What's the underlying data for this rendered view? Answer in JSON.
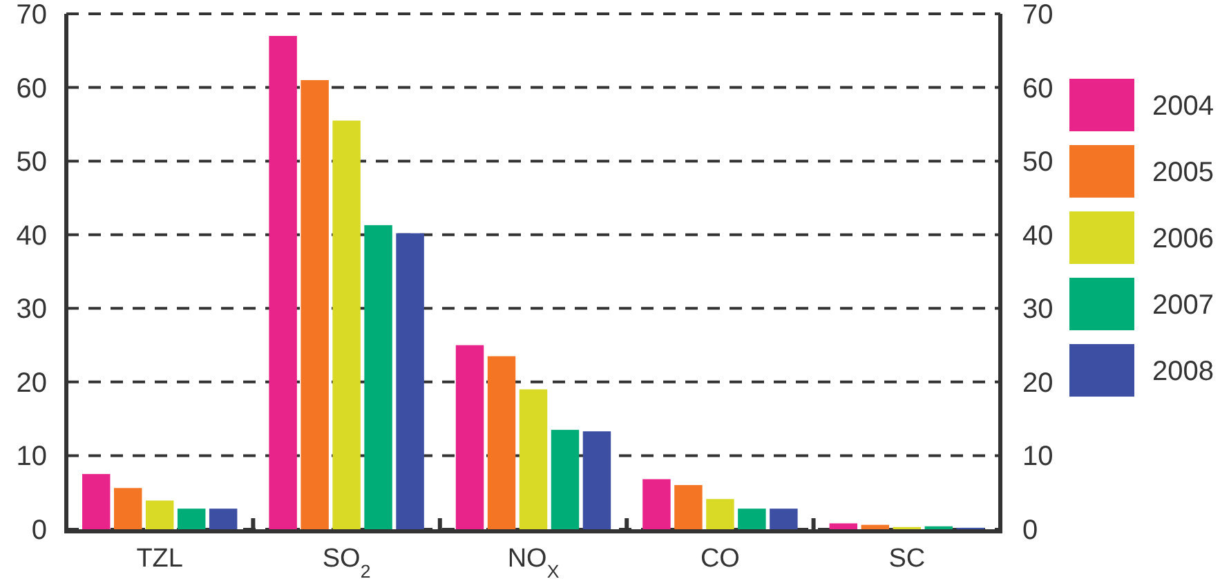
{
  "chart_data": {
    "type": "bar",
    "categories": [
      "TZL",
      "SO$_{2}$",
      "NO$_{X}$",
      "CO",
      "SC"
    ],
    "series": [
      {
        "name": "2004",
        "color": "#e8248a",
        "values": [
          7.5,
          67,
          25,
          6.8,
          0.8
        ]
      },
      {
        "name": "2005",
        "color": "#f47524",
        "values": [
          5.6,
          61,
          23.5,
          6,
          0.6
        ]
      },
      {
        "name": "2006",
        "color": "#d9da26",
        "values": [
          3.9,
          55.5,
          19,
          4.1,
          0.3
        ]
      },
      {
        "name": "2007",
        "color": "#00ad77",
        "values": [
          2.8,
          41.3,
          13.5,
          2.8,
          0.4
        ]
      },
      {
        "name": "2008",
        "color": "#3d4fa3",
        "values": [
          2.8,
          40.2,
          13.3,
          2.8,
          0.2
        ]
      }
    ],
    "ylim": [
      0,
      70
    ],
    "yticks": [
      0,
      10,
      20,
      30,
      40,
      50,
      60,
      70
    ],
    "y2lim": [
      0,
      70
    ],
    "y2ticks": [
      0,
      10,
      20,
      30,
      40,
      50,
      60,
      70
    ],
    "grid": "y",
    "legend": "right"
  }
}
